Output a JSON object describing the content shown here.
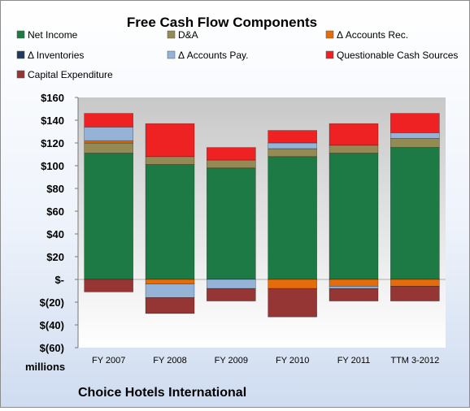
{
  "chart_data": {
    "type": "bar",
    "stacked": true,
    "title": "Free Cash Flow Components",
    "ylabel": "millions",
    "footer": "Choice Hotels International",
    "categories": [
      "FY 2007",
      "FY 2008",
      "FY 2009",
      "FY 2010",
      "FY 2011",
      "TTM 3-2012"
    ],
    "yticks": [
      "$160",
      "$140",
      "$120",
      "$100",
      "$80",
      "$60",
      "$40",
      "$20",
      "$-",
      "$(20)",
      "$(40)",
      "$(60)"
    ],
    "ylim": [
      -60,
      160
    ],
    "legend_position": "top",
    "grid": false,
    "series": [
      {
        "name": "Net Income",
        "color": "#1e7a45",
        "values": [
          111,
          101,
          98,
          108,
          111,
          116
        ]
      },
      {
        "name": "D&A",
        "color": "#948a54",
        "values": [
          9,
          7,
          7,
          7,
          7,
          8
        ]
      },
      {
        "name": "Δ Accounts Rec.",
        "color": "#e46c0a",
        "values": [
          2,
          -4,
          0,
          -8,
          -6,
          -6
        ]
      },
      {
        "name": "Δ Inventories",
        "color": "#1f3a5a",
        "values": [
          0,
          0,
          0,
          0,
          0,
          0
        ]
      },
      {
        "name": "Δ Accounts Pay.",
        "color": "#95b3d7",
        "values": [
          12,
          -12,
          -8,
          5,
          -2,
          5
        ]
      },
      {
        "name": "Questionable Cash Sources",
        "color": "#ee2222",
        "values": [
          12,
          29,
          11,
          11,
          19,
          17
        ]
      },
      {
        "name": "Capital Expenditure",
        "color": "#963634",
        "values": [
          -11,
          -14,
          -11,
          -25,
          -11,
          -13
        ]
      }
    ]
  }
}
